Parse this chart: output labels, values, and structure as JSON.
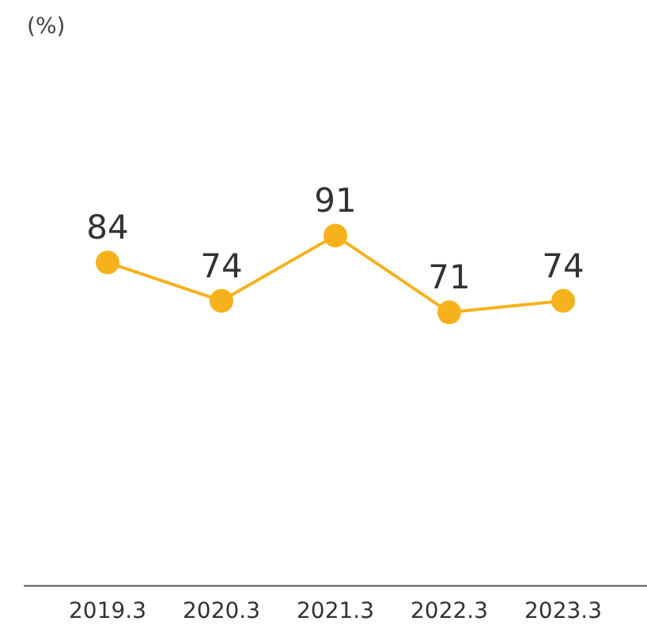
{
  "chart_data": {
    "type": "line",
    "annotations": [
      "(%)"
    ],
    "categories": [
      "2019.3",
      "2020.3",
      "2021.3",
      "2022.3",
      "2023.3"
    ],
    "series": [
      {
        "color": "#f5b21d",
        "values": [
          84,
          74,
          91,
          71,
          74
        ]
      }
    ],
    "data_labels": true,
    "marker": "circle",
    "line_style": "solid",
    "grid": false,
    "legend": false,
    "tick_labels": "x"
  }
}
